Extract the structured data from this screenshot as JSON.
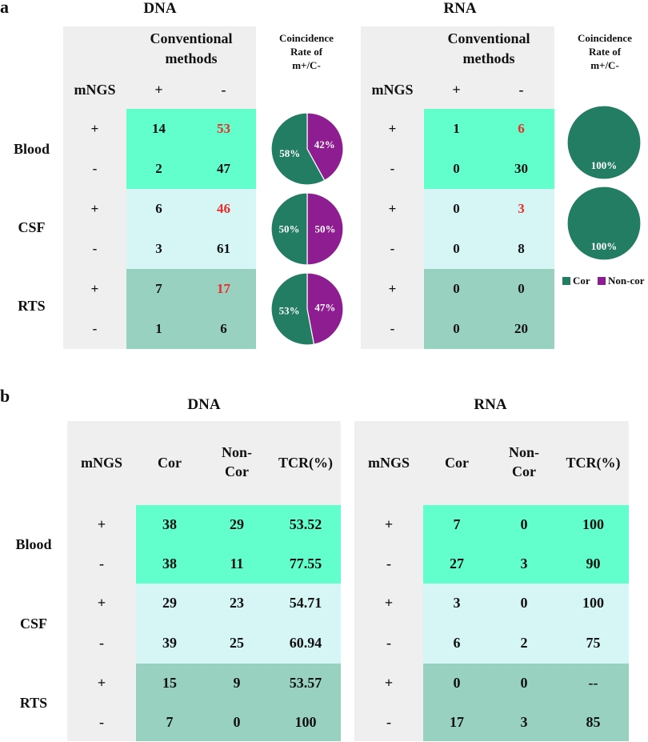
{
  "panel_a": {
    "label": "a",
    "mngs_label": "mNGS",
    "conventional_label": [
      "Conventional",
      "methods"
    ],
    "coincidence_label": [
      "Coincidence",
      "Rate of",
      "m+/C-"
    ],
    "plus": "+",
    "minus": "-",
    "dna_title": "DNA",
    "rna_title": "RNA",
    "rows": [
      "Blood",
      "CSF",
      "RTS"
    ],
    "dna": {
      "Blood": [
        [
          "14",
          "53"
        ],
        [
          "2",
          "47"
        ]
      ],
      "CSF": [
        [
          "6",
          "46"
        ],
        [
          "3",
          "61"
        ]
      ],
      "RTS": [
        [
          "7",
          "17"
        ],
        [
          "1",
          "6"
        ]
      ]
    },
    "rna": {
      "Blood": [
        [
          "1",
          "6"
        ],
        [
          "0",
          "30"
        ]
      ],
      "CSF": [
        [
          "0",
          "3"
        ],
        [
          "0",
          "8"
        ]
      ],
      "RTS": [
        [
          "0",
          "0"
        ],
        [
          "0",
          "20"
        ]
      ]
    },
    "legend": [
      "Cor",
      "Non-cor"
    ]
  },
  "chart_data": [
    {
      "type": "pie",
      "title": "DNA Blood coincidence rate of m+/C-",
      "categories": [
        "Cor",
        "Non-cor"
      ],
      "values": [
        58,
        42
      ],
      "labels": [
        "58%",
        "42%"
      ],
      "colors": [
        "#237d63",
        "#8d1d91"
      ]
    },
    {
      "type": "pie",
      "title": "DNA CSF coincidence rate of m+/C-",
      "categories": [
        "Cor",
        "Non-cor"
      ],
      "values": [
        50,
        50
      ],
      "labels": [
        "50%",
        "50%"
      ],
      "colors": [
        "#237d63",
        "#8d1d91"
      ]
    },
    {
      "type": "pie",
      "title": "DNA RTS coincidence rate of m+/C-",
      "categories": [
        "Cor",
        "Non-cor"
      ],
      "values": [
        53,
        47
      ],
      "labels": [
        "53%",
        "47%"
      ],
      "colors": [
        "#237d63",
        "#8d1d91"
      ]
    },
    {
      "type": "pie",
      "title": "RNA Blood coincidence rate of m+/C-",
      "categories": [
        "Cor",
        "Non-cor"
      ],
      "values": [
        100,
        0
      ],
      "labels": [
        "100%",
        ""
      ],
      "colors": [
        "#237d63",
        "#8d1d91"
      ]
    },
    {
      "type": "pie",
      "title": "RNA CSF coincidence rate of m+/C-",
      "categories": [
        "Cor",
        "Non-cor"
      ],
      "values": [
        100,
        0
      ],
      "labels": [
        "100%",
        ""
      ],
      "colors": [
        "#237d63",
        "#8d1d91"
      ]
    }
  ],
  "panel_b": {
    "label": "b",
    "dna_title": "DNA",
    "rna_title": "RNA",
    "headers": [
      "mNGS",
      "Cor",
      "Non-\nCor",
      "TCR(%)"
    ],
    "rows": [
      "Blood",
      "CSF",
      "RTS"
    ],
    "plus": "+",
    "minus": "-",
    "dna": {
      "Blood": [
        [
          "38",
          "29",
          "53.52"
        ],
        [
          "38",
          "11",
          "77.55"
        ]
      ],
      "CSF": [
        [
          "29",
          "23",
          "54.71"
        ],
        [
          "39",
          "25",
          "60.94"
        ]
      ],
      "RTS": [
        [
          "15",
          "9",
          "53.57"
        ],
        [
          "7",
          "0",
          "100"
        ]
      ]
    },
    "rna": {
      "Blood": [
        [
          "7",
          "0",
          "100"
        ],
        [
          "27",
          "3",
          "90"
        ]
      ],
      "CSF": [
        [
          "3",
          "0",
          "100"
        ],
        [
          "6",
          "2",
          "75"
        ]
      ],
      "RTS": [
        [
          "0",
          "0",
          "--"
        ],
        [
          "17",
          "3",
          "85"
        ]
      ]
    }
  },
  "colors": {
    "blood": "#62ffcc",
    "csf": "#d6f6f6",
    "rts": "#99d1c0",
    "gray": "#efefef",
    "cor": "#237d63",
    "noncor": "#8d1d91",
    "red": "#ef2b2b"
  }
}
